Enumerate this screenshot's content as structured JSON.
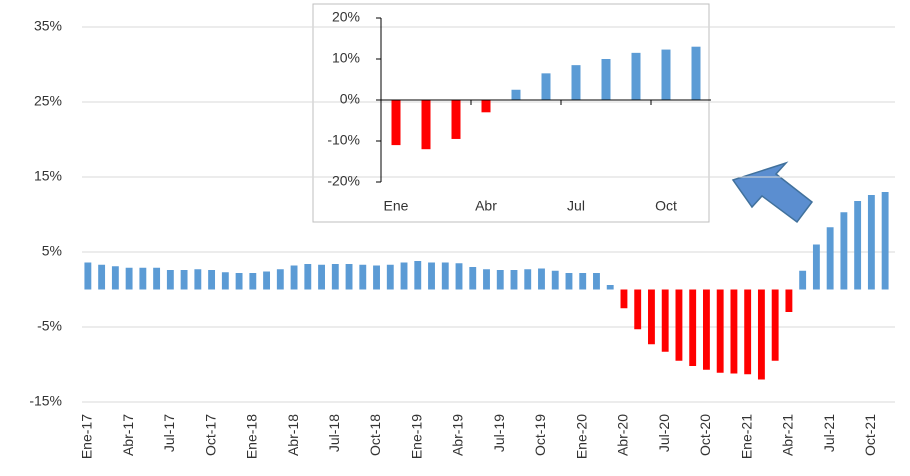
{
  "chart_data": [
    {
      "type": "bar",
      "categories": [
        "Ene-17",
        null,
        null,
        "Abr-17",
        null,
        null,
        "Jul-17",
        null,
        null,
        "Oct-17",
        null,
        null,
        "Ene-18",
        null,
        null,
        "Abr-18",
        null,
        null,
        "Jul-18",
        null,
        null,
        "Oct-18",
        null,
        null,
        "Ene-19",
        null,
        null,
        "Abr-19",
        null,
        null,
        "Jul-19",
        null,
        null,
        "Oct-19",
        null,
        null,
        "Ene-20",
        null,
        null,
        "Abr-20",
        null,
        null,
        "Jul-20",
        null,
        null,
        "Oct-20",
        null,
        null,
        "Ene-21",
        null,
        null,
        "Abr-21",
        null,
        null,
        "Jul-21",
        null,
        null,
        "Oct-21",
        null
      ],
      "values": [
        3.6,
        3.3,
        3.1,
        2.9,
        2.9,
        2.9,
        2.6,
        2.6,
        2.7,
        2.6,
        2.3,
        2.2,
        2.2,
        2.4,
        2.7,
        3.2,
        3.4,
        3.3,
        3.4,
        3.4,
        3.3,
        3.2,
        3.3,
        3.6,
        3.8,
        3.6,
        3.6,
        3.5,
        3.0,
        2.7,
        2.6,
        2.6,
        2.7,
        2.8,
        2.5,
        2.2,
        2.2,
        2.2,
        0.6,
        -2.5,
        -5.3,
        -7.3,
        -8.3,
        -9.5,
        -10.2,
        -10.7,
        -11.1,
        -11.2,
        -11.3,
        -12.0,
        -9.5,
        -3.0,
        2.5,
        6.0,
        8.3,
        10.3,
        11.8,
        12.6,
        13.0
      ],
      "positive_color": "#5b9bd5",
      "negative_color": "#ff0000",
      "ylim": [
        -15,
        35
      ],
      "yticks": [
        {
          "value": -15,
          "label": "-15%"
        },
        {
          "value": -5,
          "label": "-5%"
        },
        {
          "value": 5,
          "label": "5%"
        },
        {
          "value": 15,
          "label": "15%"
        },
        {
          "value": 25,
          "label": "25%"
        },
        {
          "value": 35,
          "label": "35%"
        }
      ],
      "grid": true
    },
    {
      "type": "bar",
      "categories": [
        "Ene",
        null,
        null,
        "Abr",
        null,
        null,
        "Jul",
        null,
        null,
        "Oct",
        null
      ],
      "values": [
        -11,
        -12,
        -9.5,
        -3,
        2.5,
        6.5,
        8.5,
        10,
        11.5,
        12.3,
        13
      ],
      "positive_color": "#5b9bd5",
      "negative_color": "#ff0000",
      "ylim": [
        -20,
        20
      ],
      "yticks": [
        {
          "value": -20,
          "label": "-20%"
        },
        {
          "value": -10,
          "label": "-10%"
        },
        {
          "value": 0,
          "label": "0%"
        },
        {
          "value": 10,
          "label": "10%"
        },
        {
          "value": 20,
          "label": "20%"
        }
      ],
      "grid": false
    }
  ]
}
